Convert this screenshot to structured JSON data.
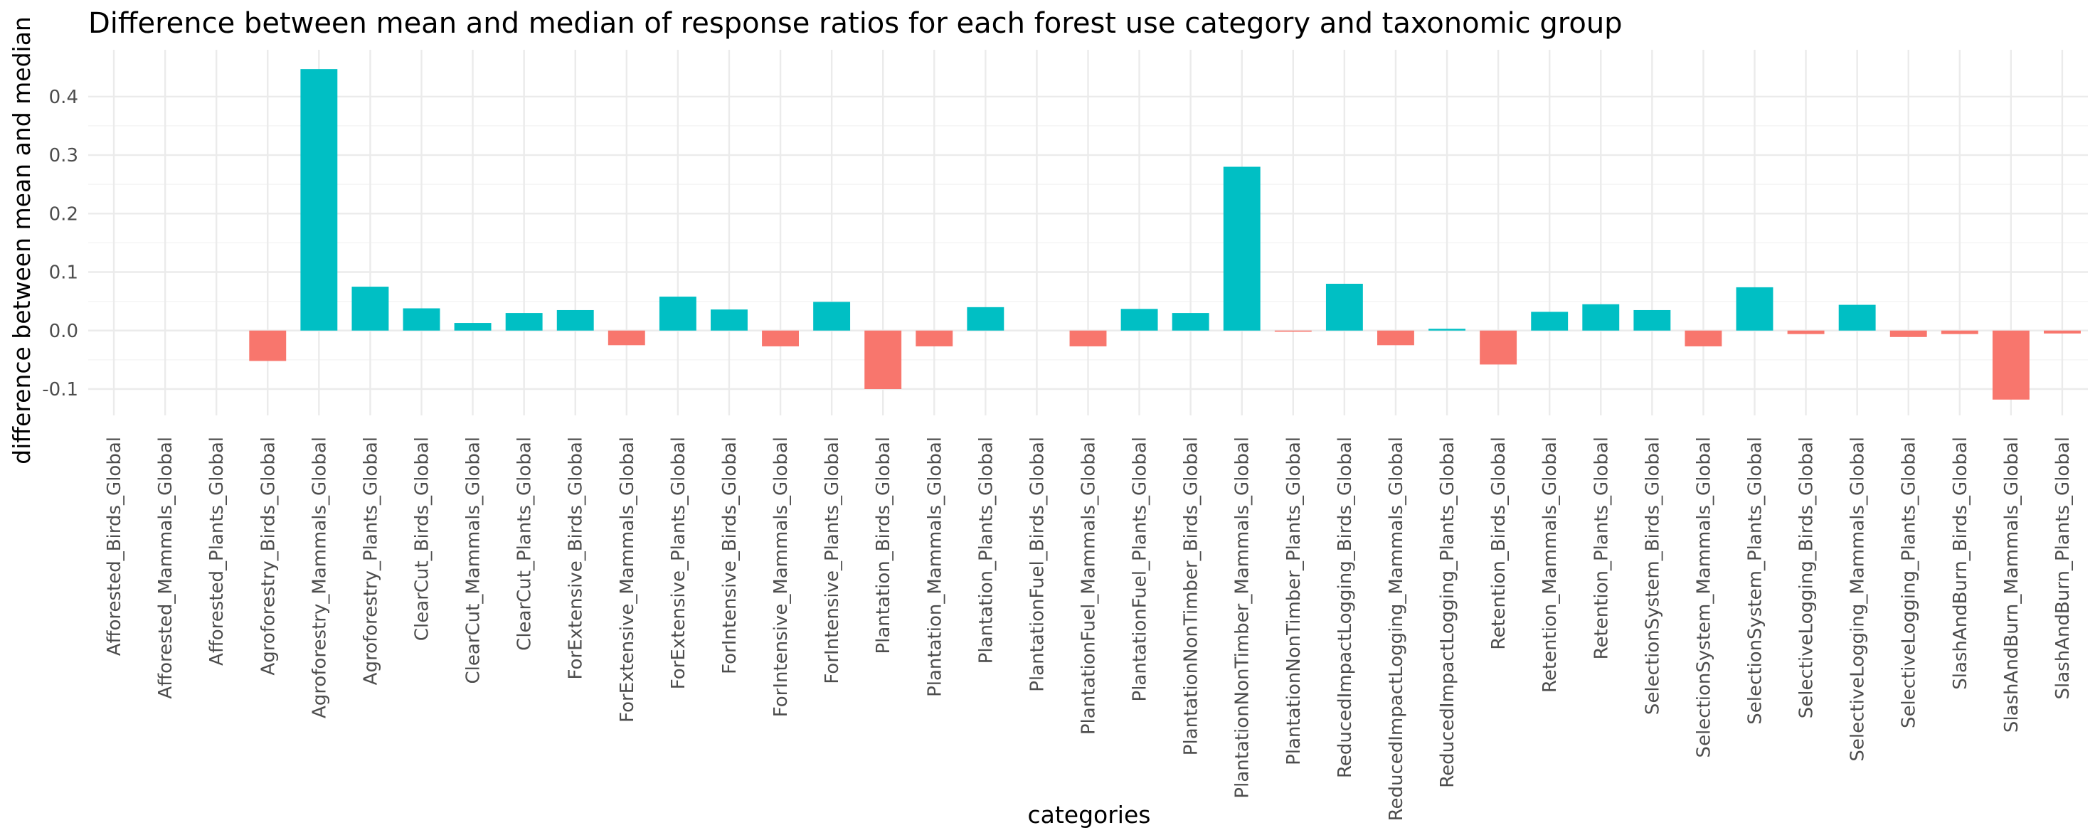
{
  "chart_data": {
    "type": "bar",
    "title": "Difference between mean and median of response ratios for each forest use category and taxonomic group",
    "xlabel": "categories",
    "ylabel": "difference between mean and median",
    "ylim": [
      -0.145,
      0.48
    ],
    "yticks": [
      -0.1,
      0.0,
      0.1,
      0.2,
      0.3,
      0.4
    ],
    "ytick_labels": [
      "-0.1",
      "0.0",
      "0.1",
      "0.2",
      "0.3",
      "0.4"
    ],
    "grid": true,
    "legend": "none",
    "colors": {
      "positive": "#00BFC4",
      "negative": "#F8766D"
    },
    "categories": [
      "Afforested_Birds_Global",
      "Afforested_Mammals_Global",
      "Afforested_Plants_Global",
      "Agroforestry_Birds_Global",
      "Agroforestry_Mammals_Global",
      "Agroforestry_Plants_Global",
      "ClearCut_Birds_Global",
      "ClearCut_Mammals_Global",
      "ClearCut_Plants_Global",
      "ForExtensive_Birds_Global",
      "ForExtensive_Mammals_Global",
      "ForExtensive_Plants_Global",
      "ForIntensive_Birds_Global",
      "ForIntensive_Mammals_Global",
      "ForIntensive_Plants_Global",
      "Plantation_Birds_Global",
      "Plantation_Mammals_Global",
      "Plantation_Plants_Global",
      "PlantationFuel_Birds_Global",
      "PlantationFuel_Mammals_Global",
      "PlantationFuel_Plants_Global",
      "PlantationNonTimber_Birds_Global",
      "PlantationNonTimber_Mammals_Global",
      "PlantationNonTimber_Plants_Global",
      "ReducedImpactLogging_Birds_Global",
      "ReducedImpactLogging_Mammals_Global",
      "ReducedImpactLogging_Plants_Global",
      "Retention_Birds_Global",
      "Retention_Mammals_Global",
      "Retention_Plants_Global",
      "SelectionSystem_Birds_Global",
      "SelectionSystem_Mammals_Global",
      "SelectionSystem_Plants_Global",
      "SelectiveLogging_Birds_Global",
      "SelectiveLogging_Mammals_Global",
      "SelectiveLogging_Plants_Global",
      "SlashAndBurn_Birds_Global",
      "SlashAndBurn_Mammals_Global",
      "SlashAndBurn_Plants_Global"
    ],
    "values": [
      0.0,
      0.0,
      0.0,
      -0.052,
      0.447,
      0.075,
      0.038,
      0.013,
      0.03,
      0.035,
      -0.025,
      0.058,
      0.036,
      -0.027,
      0.049,
      -0.1,
      -0.027,
      0.04,
      0.0,
      -0.027,
      0.037,
      0.03,
      0.28,
      -0.002,
      0.08,
      -0.025,
      0.003,
      -0.058,
      0.032,
      0.045,
      0.035,
      -0.027,
      0.074,
      -0.006,
      0.044,
      -0.011,
      -0.006,
      -0.118,
      -0.005
    ]
  }
}
